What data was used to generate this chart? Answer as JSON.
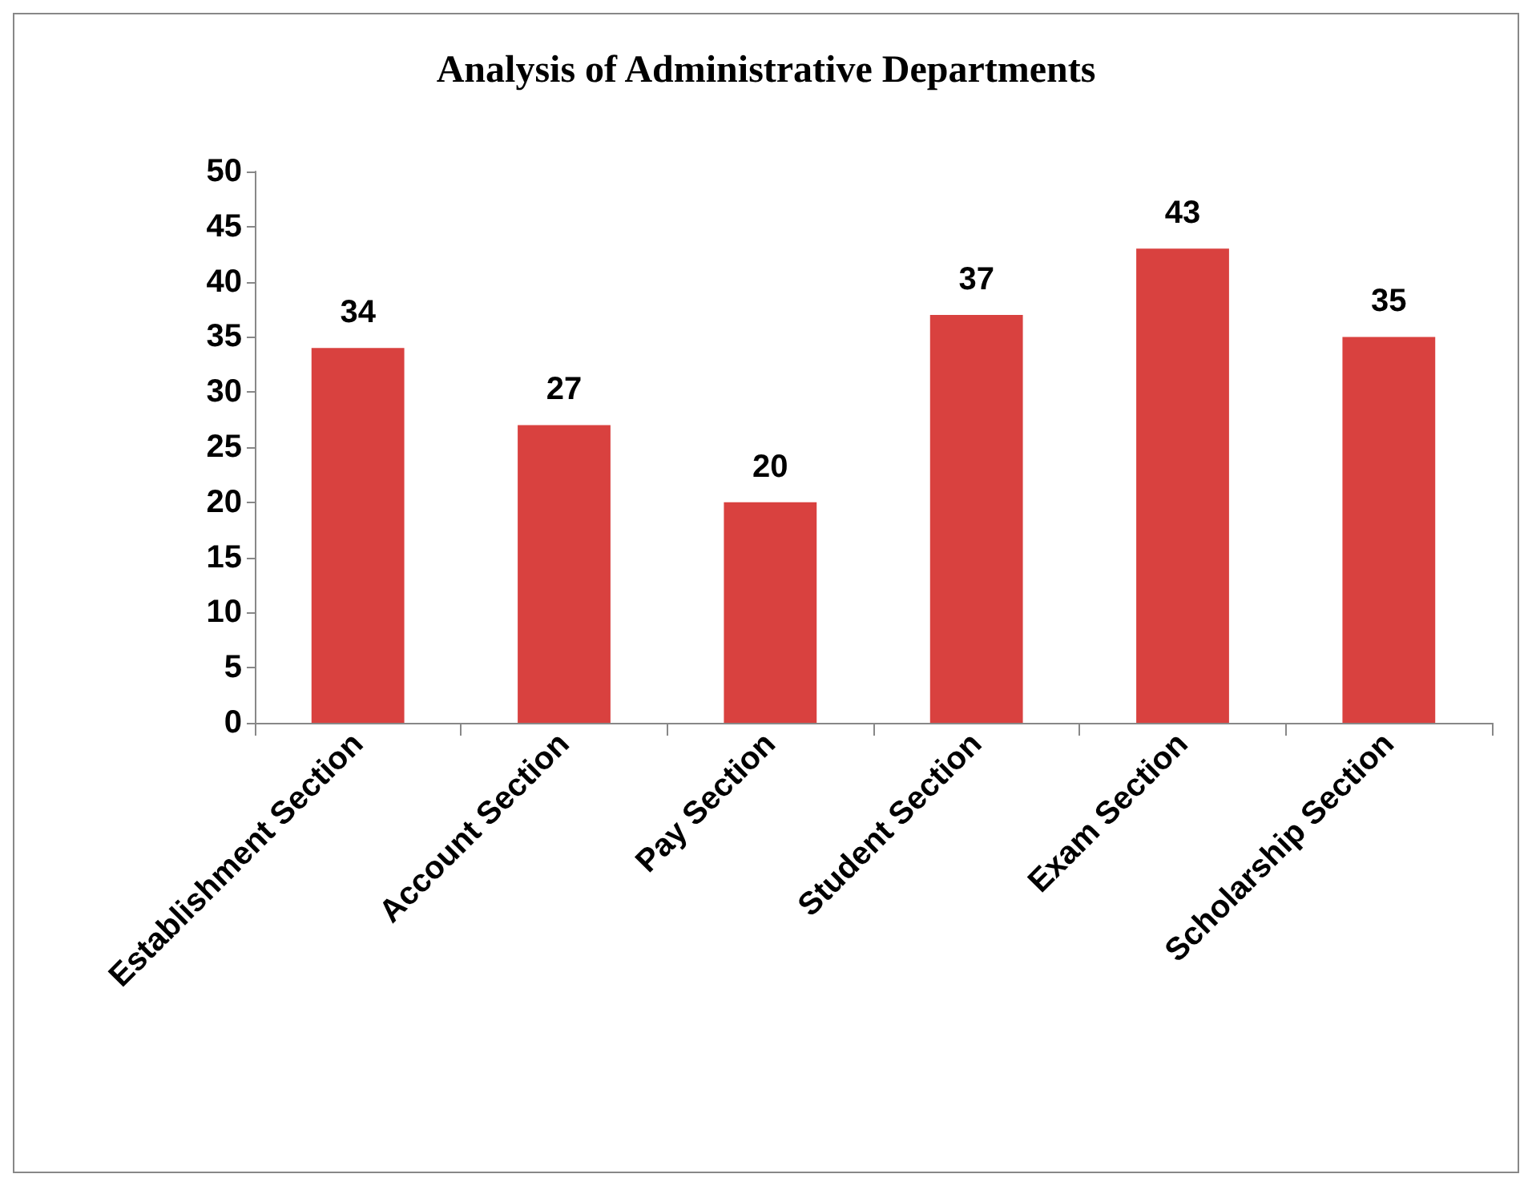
{
  "chart_data": {
    "type": "bar",
    "title": "Analysis of Administrative Departments",
    "categories": [
      "Establishment Section",
      "Account Section",
      "Pay Section",
      "Student Section",
      "Exam Section",
      "Scholarship Section"
    ],
    "values": [
      34,
      27,
      20,
      37,
      43,
      35
    ],
    "color": "#d9413f",
    "ylim": [
      0,
      50
    ],
    "yticks": [
      0,
      5,
      10,
      15,
      20,
      25,
      30,
      35,
      40,
      45,
      50
    ],
    "grid": false,
    "data_labels": true
  }
}
